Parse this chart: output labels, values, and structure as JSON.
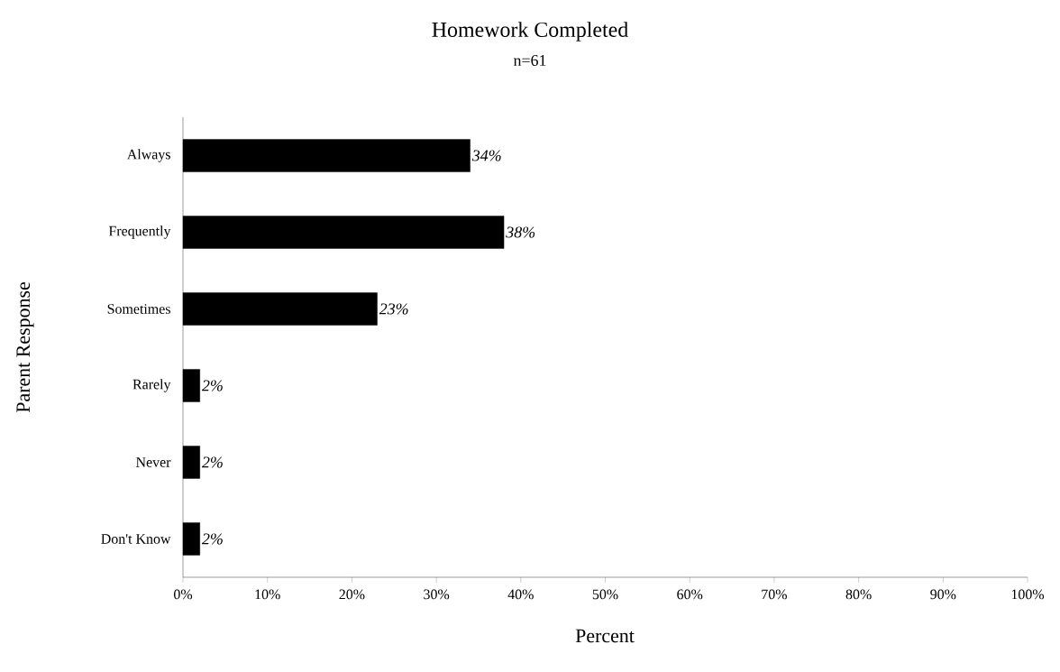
{
  "chart_data": {
    "type": "bar",
    "orientation": "horizontal",
    "title": "Homework Completed",
    "subtitle": "n=61",
    "xlabel": "Percent",
    "ylabel": "Parent Response",
    "categories": [
      "Always",
      "Frequently",
      "Sometimes",
      "Rarely",
      "Never",
      "Don't Know"
    ],
    "values": [
      34,
      38,
      23,
      2,
      2,
      2
    ],
    "value_labels": [
      "34%",
      "38%",
      "23%",
      "2%",
      "2%",
      "2%"
    ],
    "color": "#000000",
    "xlim": [
      0,
      100
    ],
    "xticks": [
      {
        "value": 0,
        "label": "0%"
      },
      {
        "value": 10,
        "label": "10%"
      },
      {
        "value": 20,
        "label": "20%"
      },
      {
        "value": 30,
        "label": "30%"
      },
      {
        "value": 40,
        "label": "40%"
      },
      {
        "value": 50,
        "label": "50%"
      },
      {
        "value": 60,
        "label": "60%"
      },
      {
        "value": 70,
        "label": "70%"
      },
      {
        "value": 80,
        "label": "80%"
      },
      {
        "value": 90,
        "label": "90%"
      },
      {
        "value": 100,
        "label": "100%"
      }
    ]
  }
}
